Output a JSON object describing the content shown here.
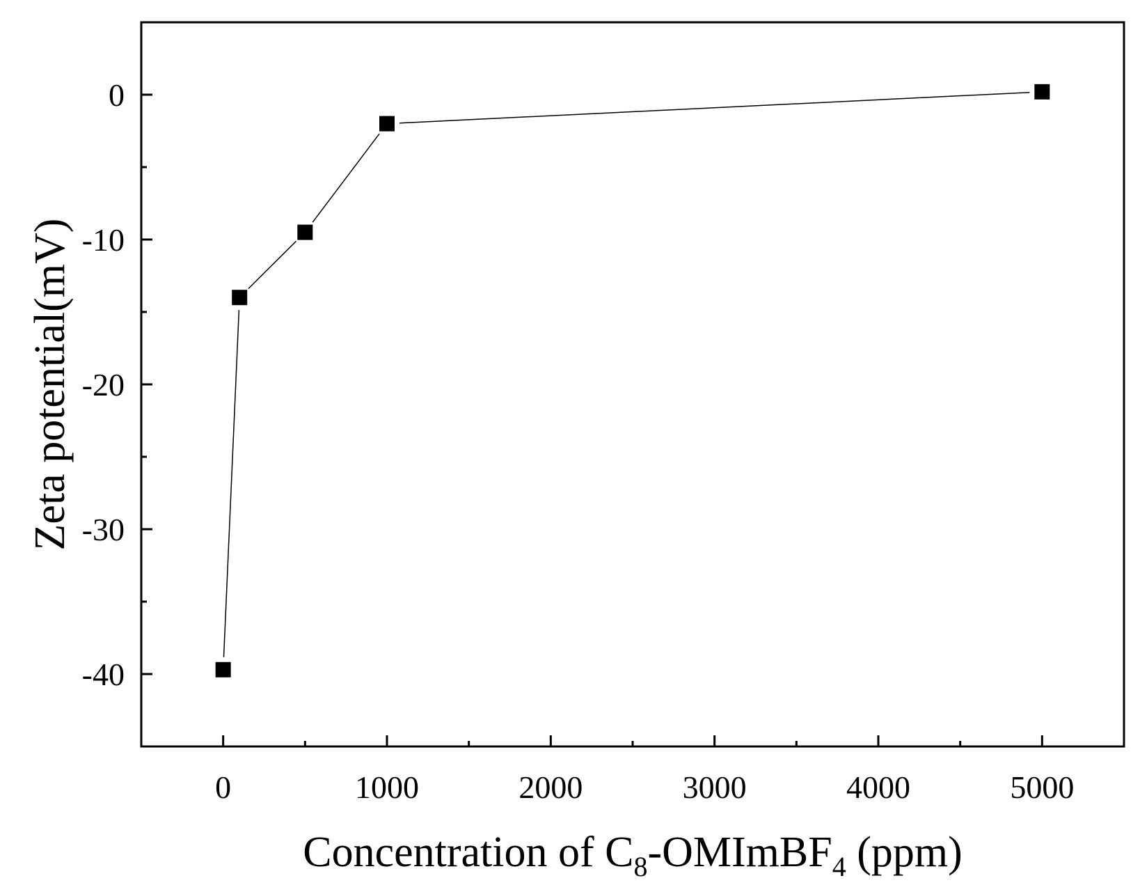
{
  "chart_data": {
    "type": "line",
    "title": "",
    "xlabel": {
      "pre": "Concentration of C",
      "sub1": "8",
      "mid": "-OMImBF",
      "sub2": "4",
      "post": " (ppm)"
    },
    "ylabel": "Zeta potential(mV)",
    "xlim": [
      -500,
      5500
    ],
    "ylim": [
      -45,
      5
    ],
    "xticks": [
      0,
      1000,
      2000,
      3000,
      4000,
      5000
    ],
    "xticks_minor": [
      500,
      1500,
      2500,
      3500,
      4500
    ],
    "yticks": [
      0,
      -10,
      -20,
      -30,
      -40
    ],
    "yticks_minor": [
      -5,
      -15,
      -25,
      -35
    ],
    "grid": false,
    "legend": "none",
    "series": [
      {
        "marker": "square",
        "color": "#000000",
        "x": [
          0,
          100,
          500,
          1000,
          5000
        ],
        "y": [
          -39.7,
          -14,
          -9.5,
          -2,
          0.2
        ]
      }
    ]
  }
}
